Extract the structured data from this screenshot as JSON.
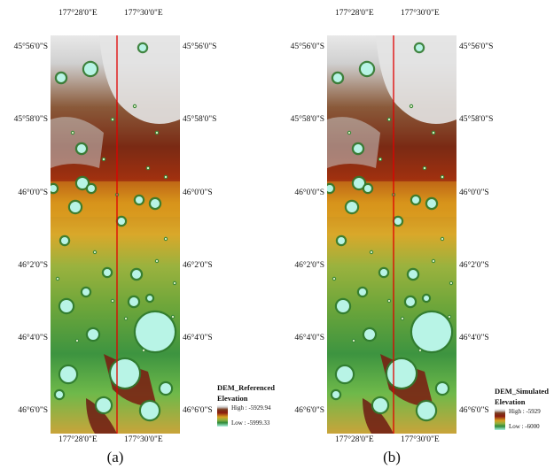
{
  "panels": [
    {
      "id": "a",
      "caption": "(a)",
      "top_longitudes": [
        "177°28'0\"E",
        "177°30'0\"E"
      ],
      "bottom_longitudes": [
        "177°28'0\"E",
        "177°30'0\"E"
      ],
      "latitudes": [
        "45°56'0\"S",
        "45°58'0\"S",
        "46°0'0\"S",
        "46°2'0\"S",
        "46°4'0\"S",
        "46°6'0\"S"
      ],
      "legend": {
        "title": "DEM_Referenced",
        "subtitle": "Elevation",
        "high": "High : -5929.94",
        "low": "Low : -5999.33"
      }
    },
    {
      "id": "b",
      "caption": "(b)",
      "top_longitudes": [
        "177°28'0\"E",
        "177°30'0\"E"
      ],
      "bottom_longitudes": [
        "177°28'0\"E",
        "177°30'0\"E"
      ],
      "latitudes": [
        "45°56'0\"S",
        "45°58'0\"S",
        "46°0'0\"S",
        "46°2'0\"S",
        "46°4'0\"S",
        "46°6'0\"S"
      ],
      "legend": {
        "title": "DEM_Simulated",
        "subtitle": "Elevation",
        "high": "High : -5929",
        "low": "Low : -6000"
      }
    }
  ],
  "colors": {
    "profile_line": "#e00000",
    "ramp": [
      "#f5f5f5",
      "#cfcfcf",
      "#7a3a1c",
      "#8a1a10",
      "#d8a020",
      "#8ab040",
      "#2f8a3a",
      "#aef3e4"
    ]
  }
}
